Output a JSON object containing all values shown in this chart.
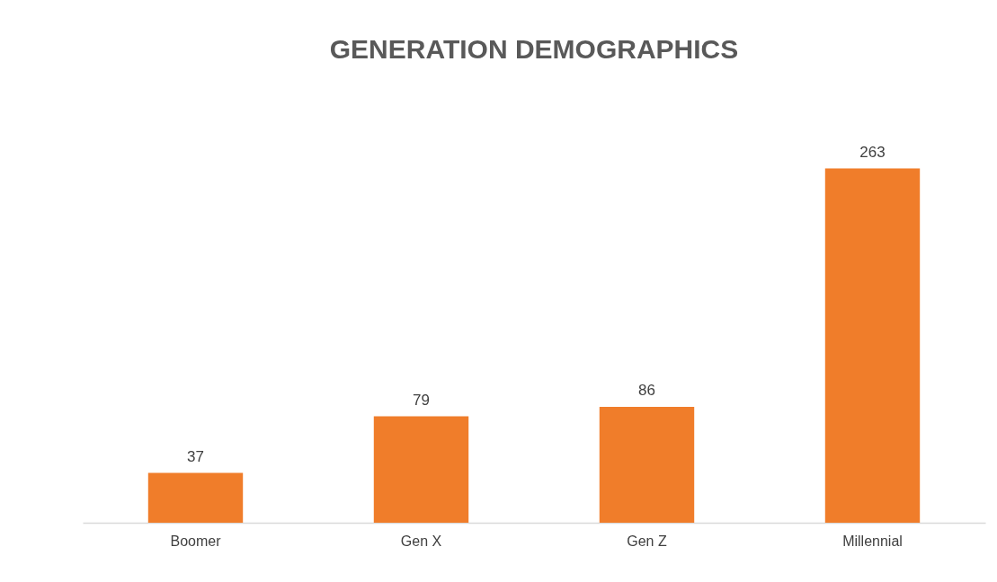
{
  "chart_data": {
    "type": "bar",
    "title": "GENERATION DEMOGRAPHICS",
    "categories": [
      "Boomer",
      "Gen X",
      "Gen Z",
      "Millennial"
    ],
    "values": [
      37,
      79,
      86,
      263
    ],
    "color": "#f07d2a",
    "data_labels": true
  }
}
